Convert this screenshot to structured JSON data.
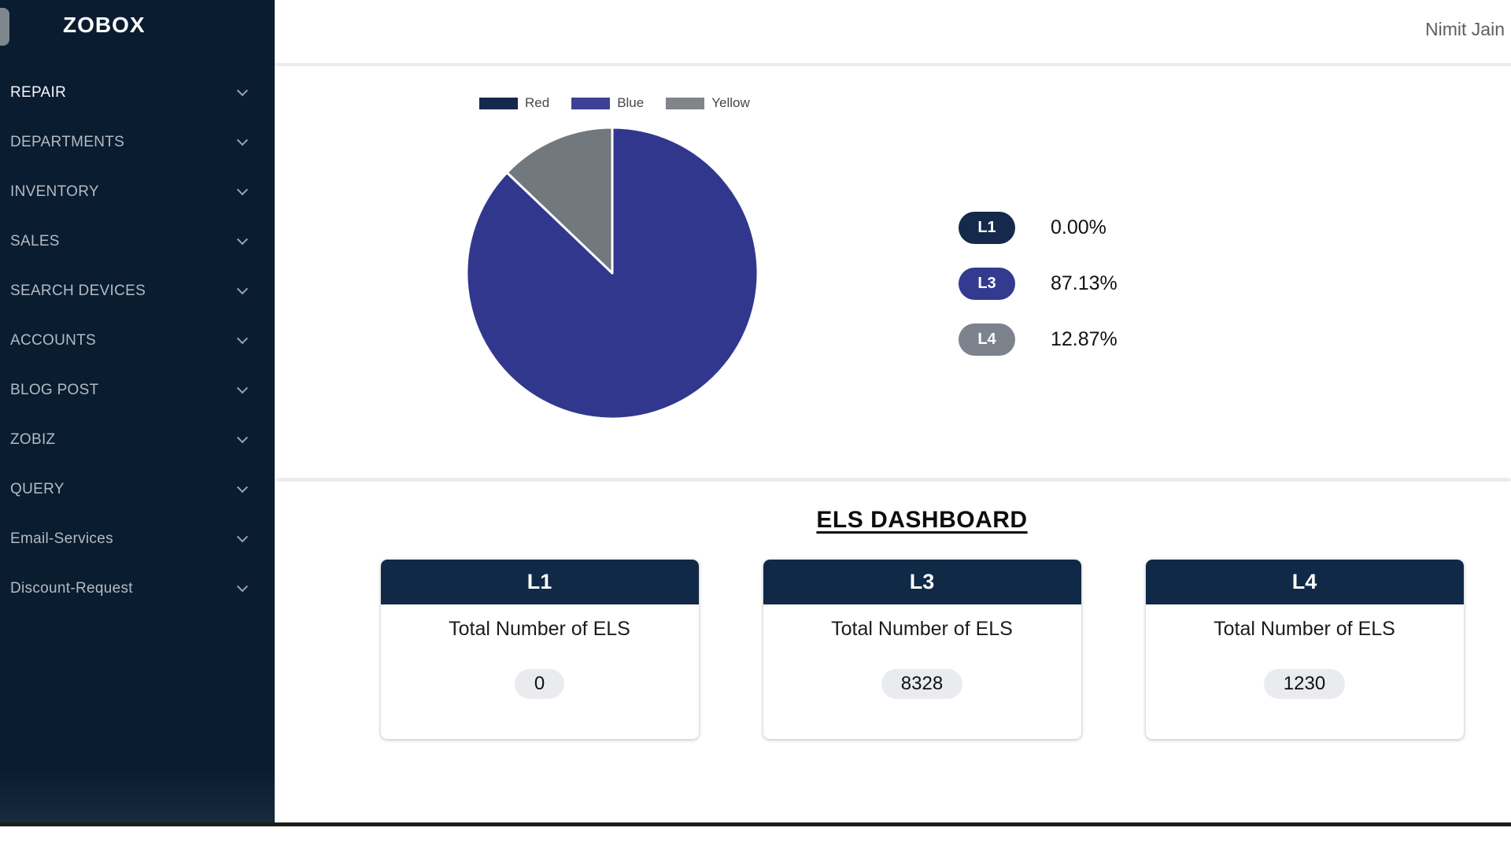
{
  "window": {
    "user_name": "Nimit Jain"
  },
  "sidebar": {
    "brand": "ZOBOX",
    "items": [
      {
        "label": "REPAIR"
      },
      {
        "label": "DEPARTMENTS"
      },
      {
        "label": "INVENTORY"
      },
      {
        "label": "SALES"
      },
      {
        "label": "SEARCH DEVICES"
      },
      {
        "label": "ACCOUNTS"
      },
      {
        "label": "BLOG POST"
      },
      {
        "label": "ZOBIZ"
      },
      {
        "label": "QUERY"
      },
      {
        "label": "Email-Services"
      },
      {
        "label": "Discount-Request"
      }
    ]
  },
  "chart_data": {
    "type": "pie",
    "title": "",
    "legend_position": "top",
    "legend": [
      {
        "label": "Red",
        "color": "#14294b"
      },
      {
        "label": "Blue",
        "color": "#3c4196"
      },
      {
        "label": "Yellow",
        "color": "#81858a"
      }
    ],
    "series": [
      {
        "name": "L1",
        "value": 0.0,
        "color": "#14294b"
      },
      {
        "name": "L3",
        "value": 87.13,
        "color": "#32378e"
      },
      {
        "name": "L4",
        "value": 12.87,
        "color": "#71787e"
      }
    ],
    "values_unit": "percent"
  },
  "stats": {
    "rows": [
      {
        "label": "L1",
        "pct": "0.00%",
        "color": "#14294b"
      },
      {
        "label": "L3",
        "pct": "87.13%",
        "color": "#333a90"
      },
      {
        "label": "L4",
        "pct": "12.87%",
        "color": "#7d838c"
      }
    ]
  },
  "els": {
    "heading": "ELS DASHBOARD",
    "header_color": "#0f2946",
    "cards": [
      {
        "title": "L1",
        "subtitle": "Total Number of ELS",
        "value": "0"
      },
      {
        "title": "L3",
        "subtitle": "Total Number of ELS",
        "value": "8328"
      },
      {
        "title": "L4",
        "subtitle": "Total Number of ELS",
        "value": "1230"
      }
    ]
  }
}
